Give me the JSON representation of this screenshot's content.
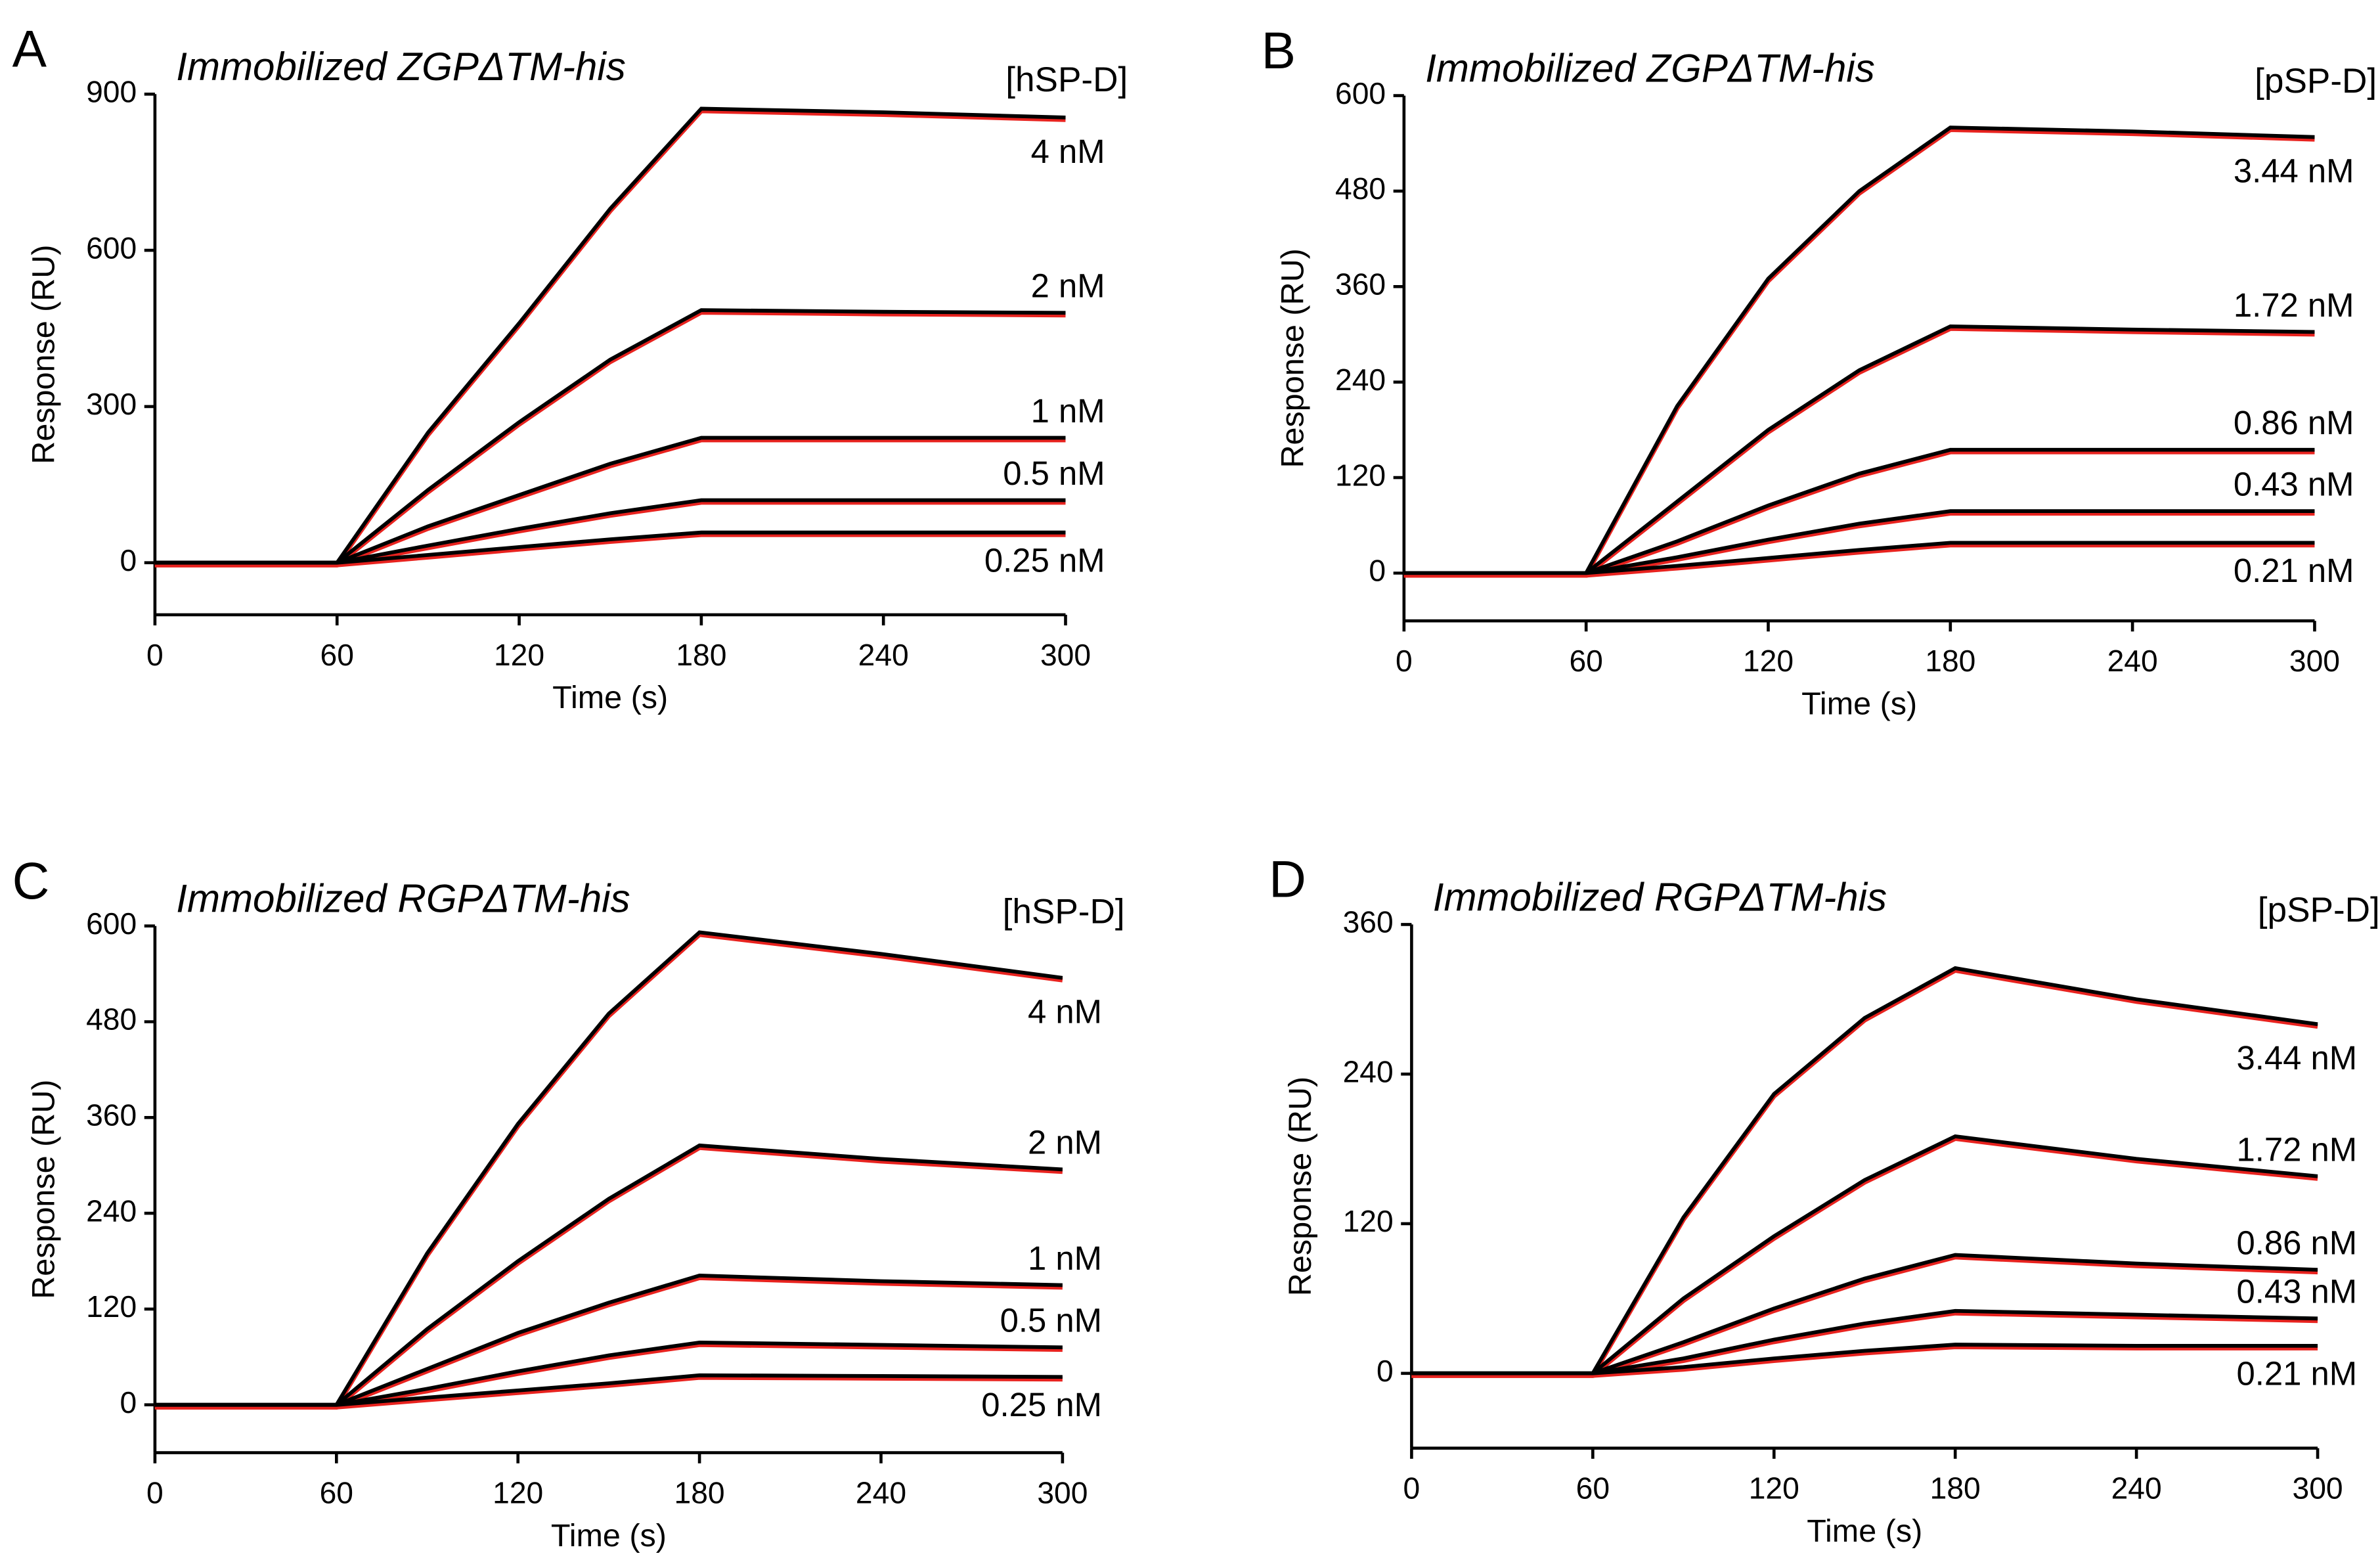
{
  "chart_data": [
    {
      "type": "line",
      "panel": "A",
      "title": "Immobilized ZGPΔTM-his",
      "legend_title": "[hSP-D]",
      "xlabel": "Time (s)",
      "ylabel": "Response (RU)",
      "fit_color": "#e8231f",
      "x": [
        0,
        60,
        90,
        120,
        150,
        180,
        240,
        300
      ],
      "xlim": [
        0,
        300
      ],
      "xticks": [
        0,
        60,
        120,
        180,
        240,
        300
      ],
      "ylim": [
        -100,
        900
      ],
      "yticks": [
        0,
        300,
        600,
        900
      ],
      "series": [
        {
          "name": "4 nM",
          "color": "#000000",
          "values": [
            0,
            0,
            250,
            460,
            680,
            872,
            865,
            855
          ]
        },
        {
          "name": "2 nM",
          "color": "#000000",
          "values": [
            0,
            0,
            140,
            270,
            390,
            485,
            482,
            480
          ]
        },
        {
          "name": "1 nM",
          "color": "#000000",
          "values": [
            0,
            0,
            70,
            130,
            190,
            240,
            240,
            240
          ]
        },
        {
          "name": "0.5 nM",
          "color": "#000000",
          "values": [
            0,
            0,
            33,
            65,
            95,
            120,
            120,
            120
          ]
        },
        {
          "name": "0.25 nM",
          "color": "#000000",
          "values": [
            0,
            0,
            15,
            30,
            45,
            58,
            58,
            58
          ]
        }
      ]
    },
    {
      "type": "line",
      "panel": "B",
      "title": "Immobilized ZGPΔTM-his",
      "legend_title": "[pSP-D]",
      "xlabel": "Time (s)",
      "ylabel": "Response (RU)",
      "fit_color": "#e8231f",
      "x": [
        0,
        60,
        90,
        120,
        150,
        180,
        240,
        300
      ],
      "xlim": [
        0,
        300
      ],
      "xticks": [
        0,
        60,
        120,
        180,
        240,
        300
      ],
      "ylim": [
        -60,
        600
      ],
      "yticks": [
        0,
        120,
        240,
        360,
        480,
        600
      ],
      "series": [
        {
          "name": "3.44 nM",
          "color": "#000000",
          "values": [
            0,
            0,
            210,
            370,
            480,
            560,
            555,
            548
          ]
        },
        {
          "name": "1.72 nM",
          "color": "#000000",
          "values": [
            0,
            0,
            90,
            180,
            255,
            310,
            306,
            303
          ]
        },
        {
          "name": "0.86 nM",
          "color": "#000000",
          "values": [
            0,
            0,
            40,
            85,
            125,
            155,
            155,
            155
          ]
        },
        {
          "name": "0.43 nM",
          "color": "#000000",
          "values": [
            0,
            0,
            20,
            42,
            62,
            78,
            78,
            78
          ]
        },
        {
          "name": "0.21 nM",
          "color": "#000000",
          "values": [
            0,
            0,
            9,
            19,
            29,
            38,
            38,
            38
          ]
        }
      ]
    },
    {
      "type": "line",
      "panel": "C",
      "title": "Immobilized RGPΔTM-his",
      "legend_title": "[hSP-D]",
      "xlabel": "Time (s)",
      "ylabel": "Response (RU)",
      "fit_color": "#e8231f",
      "x": [
        0,
        60,
        90,
        120,
        150,
        180,
        240,
        300
      ],
      "xlim": [
        0,
        300
      ],
      "xticks": [
        0,
        60,
        120,
        180,
        240,
        300
      ],
      "ylim": [
        -60,
        600
      ],
      "yticks": [
        0,
        120,
        240,
        360,
        480,
        600
      ],
      "series": [
        {
          "name": "4 nM",
          "color": "#000000",
          "values": [
            0,
            0,
            190,
            352,
            490,
            592,
            565,
            535
          ]
        },
        {
          "name": "2 nM",
          "color": "#000000",
          "values": [
            0,
            0,
            95,
            180,
            258,
            325,
            308,
            295
          ]
        },
        {
          "name": "1 nM",
          "color": "#000000",
          "values": [
            0,
            0,
            45,
            90,
            128,
            162,
            155,
            150
          ]
        },
        {
          "name": "0.5 nM",
          "color": "#000000",
          "values": [
            0,
            0,
            20,
            42,
            62,
            78,
            75,
            72
          ]
        },
        {
          "name": "0.25 nM",
          "color": "#000000",
          "values": [
            0,
            0,
            9,
            18,
            27,
            37,
            36,
            35
          ]
        }
      ]
    },
    {
      "type": "line",
      "panel": "D",
      "title": "Immobilized RGPΔTM-his",
      "legend_title": "[pSP-D]",
      "xlabel": "Time (s)",
      "ylabel": "Response (RU)",
      "fit_color": "#e8231f",
      "x": [
        0,
        60,
        90,
        120,
        150,
        180,
        240,
        300
      ],
      "xlim": [
        0,
        300
      ],
      "xticks": [
        0,
        60,
        120,
        180,
        240,
        300
      ],
      "ylim": [
        -60,
        360
      ],
      "yticks": [
        0,
        120,
        240,
        360
      ],
      "series": [
        {
          "name": "3.44 nM",
          "color": "#000000",
          "values": [
            0,
            0,
            125,
            224,
            285,
            325,
            300,
            280
          ]
        },
        {
          "name": "1.72 nM",
          "color": "#000000",
          "values": [
            0,
            0,
            60,
            110,
            155,
            190,
            172,
            158
          ]
        },
        {
          "name": "0.86 nM",
          "color": "#000000",
          "values": [
            0,
            0,
            25,
            52,
            76,
            95,
            88,
            83
          ]
        },
        {
          "name": "0.43 nM",
          "color": "#000000",
          "values": [
            0,
            0,
            12,
            27,
            40,
            50,
            47,
            44
          ]
        },
        {
          "name": "0.21 nM",
          "color": "#000000",
          "values": [
            0,
            0,
            5,
            12,
            18,
            23,
            22,
            22
          ]
        }
      ]
    }
  ]
}
